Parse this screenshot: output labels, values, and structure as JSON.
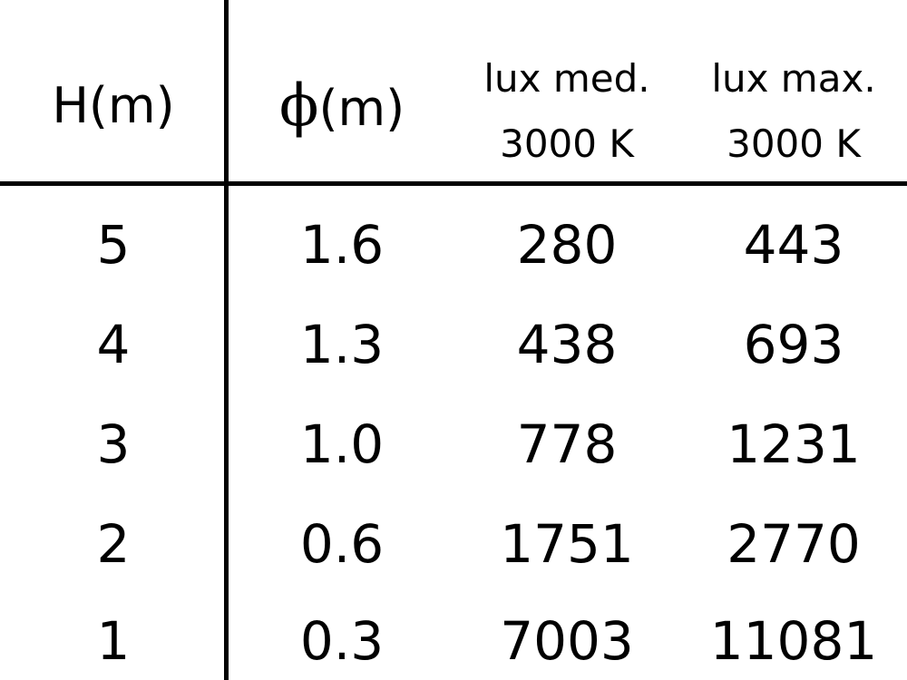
{
  "table": {
    "headers": [
      {
        "line1": "H(m)",
        "line2": ""
      },
      {
        "symbol": "ϕ",
        "line1": "(m)",
        "line2": ""
      },
      {
        "line1": "lux med.",
        "line2": "3000 K"
      },
      {
        "line1": "lux max.",
        "line2": "3000 K"
      }
    ],
    "rows": [
      [
        "5",
        "1.6",
        "280",
        "443"
      ],
      [
        "4",
        "1.3",
        "438",
        "693"
      ],
      [
        "3",
        "1.0",
        "778",
        "1231"
      ],
      [
        "2",
        "0.6",
        "1751",
        "2770"
      ],
      [
        "1",
        "0.3",
        "7003",
        "11081"
      ]
    ]
  }
}
